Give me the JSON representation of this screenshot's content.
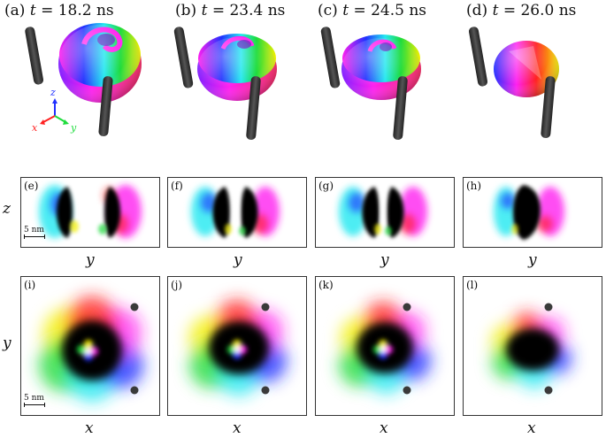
{
  "top_row": {
    "titles": [
      {
        "label": "(a)",
        "var": "t",
        "rest": "= 18.2 ns"
      },
      {
        "label": "(b)",
        "var": "t",
        "rest": "= 23.4 ns"
      },
      {
        "label": "(c)",
        "var": "t",
        "rest": "= 24.5 ns"
      },
      {
        "label": "(d)",
        "var": "t",
        "rest": "= 26.0 ns"
      }
    ],
    "triad": {
      "z": "z",
      "x": "x",
      "y": "y"
    }
  },
  "middle_row": {
    "labels": [
      "(e)",
      "(f)",
      "(g)",
      "(h)"
    ],
    "vertical_axis": "z",
    "horizontal_axis": "y",
    "scale_bar": "5 nm"
  },
  "bottom_row": {
    "labels": [
      "(i)",
      "(j)",
      "(k)",
      "(l)"
    ],
    "vertical_axis": "y",
    "horizontal_axis": "x",
    "scale_bar": "5 nm"
  },
  "colors": {
    "red": "#ff2020",
    "yellow": "#f4f000",
    "green": "#1edc3c",
    "cyan": "#22e8f0",
    "blue": "#2030ff",
    "magenta": "#ff20f0",
    "black": "#000000",
    "tip": "#3a3a3a"
  }
}
